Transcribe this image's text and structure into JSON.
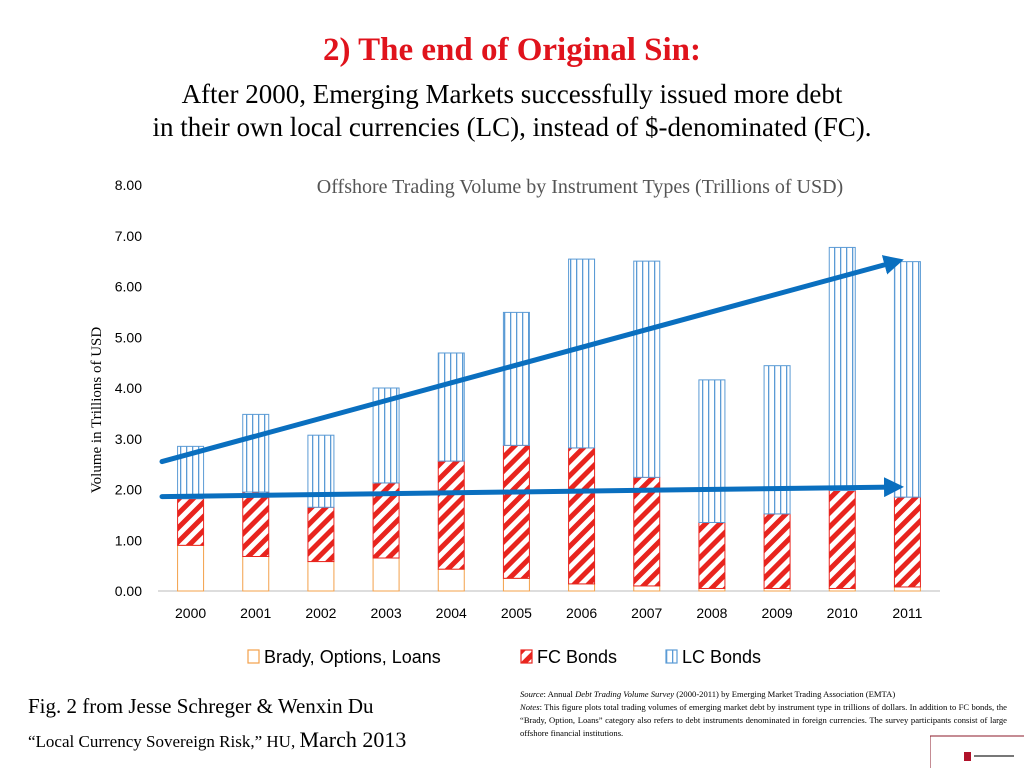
{
  "slide": {
    "title": "2) The end of Original Sin:",
    "subtitle_line1": "After 2000, Emerging Markets successfully issued more debt",
    "subtitle_line2": "in their own local currencies (LC), instead of $-denominated (FC)."
  },
  "caption": {
    "line1": "Fig. 2 from Jesse Schreger & Wenxin Du",
    "line2_main": "“Local Currency Sovereign Risk,” HU,",
    "line2_date": "March 2013"
  },
  "source_note": {
    "source_label": "Source",
    "source_text_a": ": Annual ",
    "source_title": "Debt Trading Volume Survey",
    "source_text_b": " (2000-2011) by Emerging Market Trading Association (EMTA)",
    "notes_label": "Notes",
    "notes_text": ": This figure plots total trading volumes of emerging market debt by instrument type in trillions of dollars. In addition to FC bonds, the “Brady, Option, Loans” category also refers to debt instruments denominated in foreign currencies. The survey participants consist of large offshore financial institutions."
  },
  "chart_data": {
    "type": "bar",
    "stacked": true,
    "title": "Offshore Trading Volume by Instrument Types (Trillions of USD)",
    "ylabel": "Volume in Trillions of USD",
    "xlabel": "",
    "ylim": [
      0,
      8
    ],
    "yticks": [
      "0.00",
      "1.00",
      "2.00",
      "3.00",
      "4.00",
      "5.00",
      "6.00",
      "7.00",
      "8.00"
    ],
    "categories": [
      "2000",
      "2001",
      "2002",
      "2003",
      "2004",
      "2005",
      "2006",
      "2007",
      "2008",
      "2009",
      "2010",
      "2011"
    ],
    "series": [
      {
        "name": "Brady, Options, Loans",
        "pattern": "solid-outline",
        "color": "#f3a04a",
        "values": [
          0.9,
          0.68,
          0.58,
          0.65,
          0.43,
          0.25,
          0.14,
          0.1,
          0.05,
          0.05,
          0.05,
          0.08
        ]
      },
      {
        "name": "FC Bonds",
        "pattern": "diagonal-stripes",
        "color": "#e8241e",
        "values": [
          0.92,
          1.27,
          1.07,
          1.48,
          2.13,
          2.62,
          2.68,
          2.14,
          1.3,
          1.47,
          1.93,
          1.77
        ]
      },
      {
        "name": "LC Bonds",
        "pattern": "vertical-stripes",
        "color": "#5b9bd5",
        "values": [
          1.03,
          1.53,
          1.42,
          1.87,
          2.13,
          2.62,
          3.72,
          4.26,
          2.81,
          2.92,
          4.79,
          4.64
        ]
      }
    ],
    "trend_arrows": [
      {
        "from": [
          2000,
          2.55
        ],
        "to": [
          2011,
          6.5
        ],
        "color": "#0a6fbf"
      },
      {
        "from": [
          2000,
          1.86
        ],
        "to": [
          2011,
          2.05
        ],
        "color": "#0a6fbf"
      }
    ],
    "legend_position": "bottom",
    "grid": false
  }
}
